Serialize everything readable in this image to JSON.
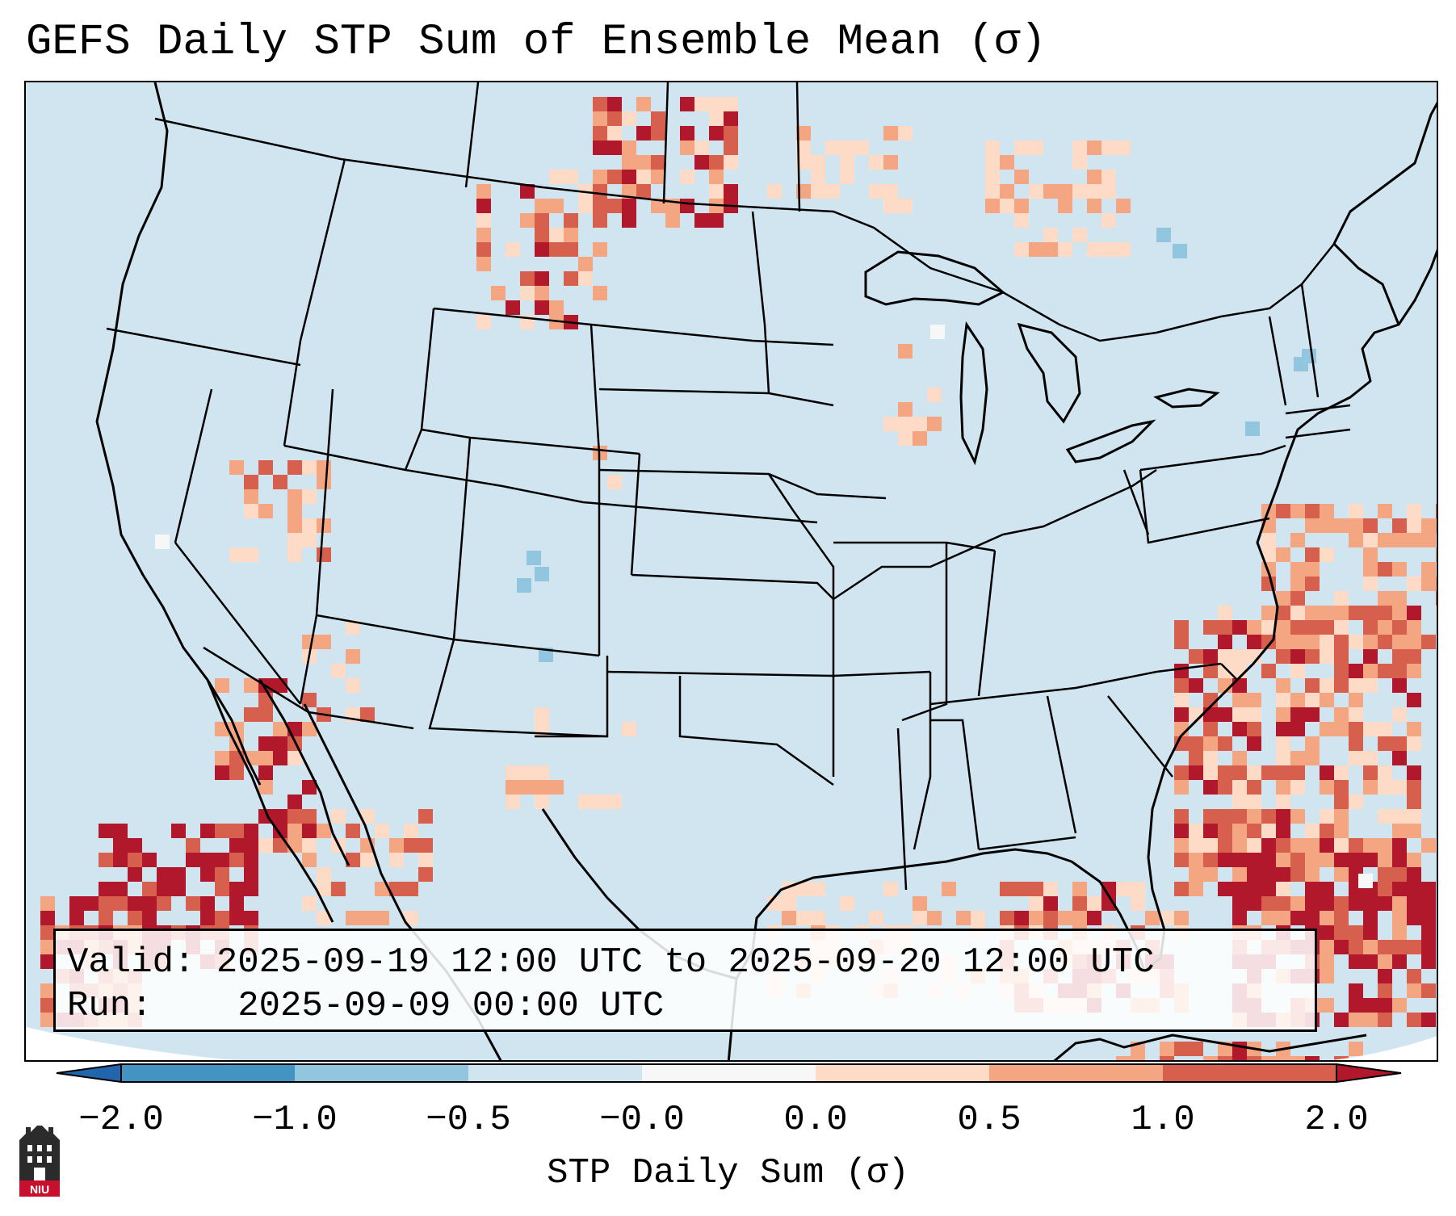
{
  "title": "GEFS Daily STP Sum of Ensemble Mean (σ)",
  "info": {
    "valid_label": "Valid:",
    "valid_value": "2025-09-19 12:00 UTC to 2025-09-20 12:00 UTC",
    "run_label": "Run:",
    "run_value": "2025-09-09 00:00 UTC"
  },
  "colorbar": {
    "label": "STP Daily Sum (σ)",
    "ticks": [
      "−2.0",
      "−1.0",
      "−0.5",
      "−0.0",
      "0.0",
      "0.5",
      "1.0",
      "2.0"
    ],
    "bins": [
      {
        "range": "< -2.0",
        "color": "#2166ac"
      },
      {
        "range": "-2.0 to -1.0",
        "color": "#4393c3"
      },
      {
        "range": "-1.0 to -0.5",
        "color": "#92c5de"
      },
      {
        "range": "-0.5 to -0.0",
        "color": "#d1e5f0"
      },
      {
        "range": "-0.0 to 0.0",
        "color": "#f7f7f7"
      },
      {
        "range": "0.0 to 0.5",
        "color": "#fddbc7"
      },
      {
        "range": "0.5 to 1.0",
        "color": "#f4a582"
      },
      {
        "range": "1.0 to 2.0",
        "color": "#d6604d"
      },
      {
        "range": "> 2.0",
        "color": "#b2182b"
      }
    ]
  },
  "map": {
    "projection": "Lambert Conformal, CONUS",
    "background_color": "#d1e5f0",
    "highlights": [
      "Northern Plains (MT/ND) scattered 0.5–2.0σ",
      "Gulf of Mexico and western Atlantic 1.0–2.0σ",
      "Baja California / eastern Pacific 1.0–2.0σ",
      "Isolated negative anomalies near Colorado and Quebec"
    ]
  },
  "logo": {
    "text": "NIU"
  }
}
